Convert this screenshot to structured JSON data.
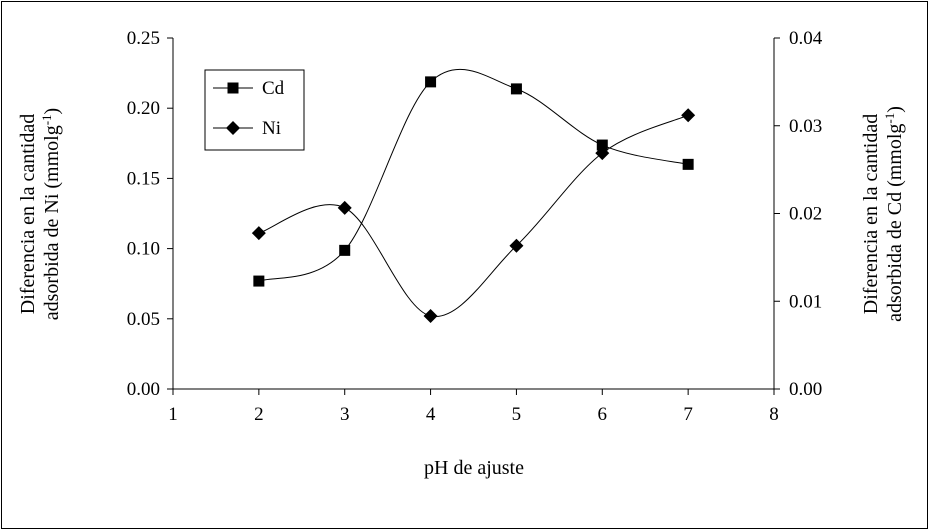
{
  "chart_data": {
    "type": "line",
    "xlabel": "pH de ajuste",
    "ylabel_left": [
      "Diferencia en la cantidad",
      "adsorbida de Ni (mmolg",
      "-1",
      ")"
    ],
    "ylabel_right": [
      "Diferencia en la cantidad",
      "adsorbida de Cd (mmolg",
      "-1",
      ")"
    ],
    "x_axis": {
      "min": 1,
      "max": 8,
      "ticks": [
        1,
        2,
        3,
        4,
        5,
        6,
        7,
        8
      ],
      "labels": [
        "1",
        "2",
        "3",
        "4",
        "5",
        "6",
        "7",
        "8"
      ]
    },
    "y_left_axis": {
      "min": 0,
      "max": 0.25,
      "ticks": [
        0,
        0.05,
        0.1,
        0.15,
        0.2,
        0.25
      ],
      "labels": [
        "0.00",
        "0.05",
        "0.10",
        "0.15",
        "0.20",
        "0.25"
      ]
    },
    "y_right_axis": {
      "min": 0,
      "max": 0.04,
      "ticks": [
        0,
        0.01,
        0.02,
        0.03,
        0.04
      ],
      "labels": [
        "0.00",
        "0.01",
        "0.02",
        "0.03",
        "0.04"
      ]
    },
    "legend_position": "top-left",
    "grid": false,
    "series": [
      {
        "name": "Cd",
        "axis": "right",
        "marker": "square",
        "x": [
          2,
          3,
          4,
          5,
          6,
          7
        ],
        "y": [
          0.0123,
          0.0158,
          0.035,
          0.0342,
          0.0278,
          0.0256
        ]
      },
      {
        "name": "Ni",
        "axis": "left",
        "marker": "diamond",
        "x": [
          2,
          3,
          4,
          5,
          6,
          7
        ],
        "y": [
          0.111,
          0.129,
          0.052,
          0.102,
          0.168,
          0.195
        ]
      }
    ]
  }
}
